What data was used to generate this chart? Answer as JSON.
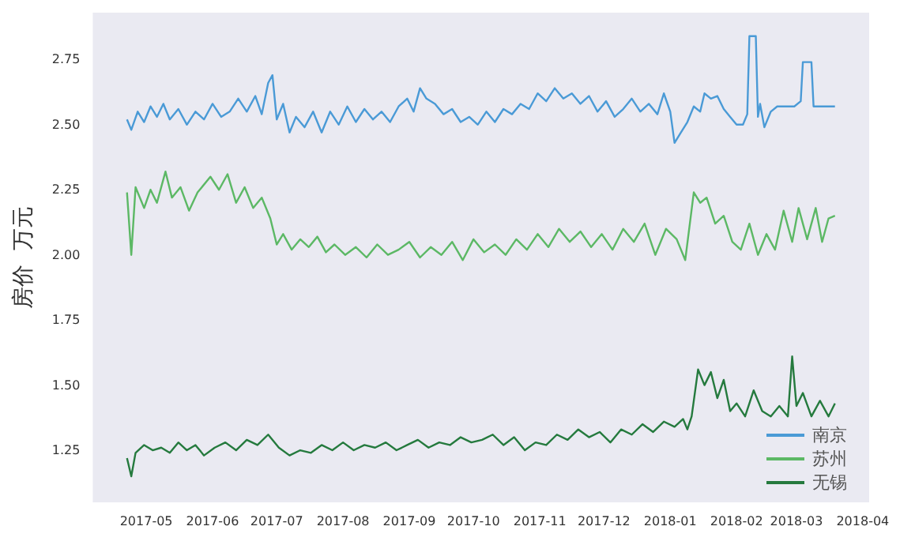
{
  "chart_data": {
    "type": "line",
    "ylabel": "房价  万元",
    "xlim": [
      "2017-04-06",
      "2018-04-04"
    ],
    "ylim": [
      1.05,
      2.93
    ],
    "xticks": [
      "2017-05",
      "2017-06",
      "2017-07",
      "2017-08",
      "2017-09",
      "2017-10",
      "2017-11",
      "2017-12",
      "2018-01",
      "2018-02",
      "2018-03",
      "2018-04"
    ],
    "yticks": [
      1.25,
      {
        "value": 1.5,
        "label": "1.50"
      },
      1.75,
      {
        "value": 2.0,
        "label": "2.00"
      },
      2.25,
      {
        "value": 2.5,
        "label": "2.50"
      },
      2.75
    ],
    "grid": false,
    "legend": "bottom right",
    "marker": "none",
    "line_style": "solid",
    "series": [
      {
        "name": "南京",
        "color": "#4a9ad6",
        "x": [
          "2017-04-22",
          "2017-04-24",
          "2017-04-27",
          "2017-04-30",
          "2017-05-03",
          "2017-05-06",
          "2017-05-09",
          "2017-05-12",
          "2017-05-16",
          "2017-05-20",
          "2017-05-24",
          "2017-05-28",
          "2017-06-01",
          "2017-06-05",
          "2017-06-09",
          "2017-06-13",
          "2017-06-17",
          "2017-06-21",
          "2017-06-24",
          "2017-06-27",
          "2017-06-29",
          "2017-07-01",
          "2017-07-04",
          "2017-07-07",
          "2017-07-10",
          "2017-07-14",
          "2017-07-18",
          "2017-07-22",
          "2017-07-26",
          "2017-07-30",
          "2017-08-03",
          "2017-08-07",
          "2017-08-11",
          "2017-08-15",
          "2017-08-19",
          "2017-08-23",
          "2017-08-27",
          "2017-08-31",
          "2017-09-03",
          "2017-09-06",
          "2017-09-09",
          "2017-09-13",
          "2017-09-17",
          "2017-09-21",
          "2017-09-25",
          "2017-09-29",
          "2017-10-03",
          "2017-10-07",
          "2017-10-11",
          "2017-10-15",
          "2017-10-19",
          "2017-10-23",
          "2017-10-27",
          "2017-10-31",
          "2017-11-04",
          "2017-11-08",
          "2017-11-12",
          "2017-11-16",
          "2017-11-20",
          "2017-11-24",
          "2017-11-28",
          "2017-12-02",
          "2017-12-06",
          "2017-12-10",
          "2017-12-14",
          "2017-12-18",
          "2017-12-22",
          "2017-12-26",
          "2017-12-29",
          "2018-01-01",
          "2018-01-03",
          "2018-01-06",
          "2018-01-09",
          "2018-01-12",
          "2018-01-15",
          "2018-01-17",
          "2018-01-20",
          "2018-01-23",
          "2018-01-26",
          "2018-01-29",
          "2018-02-01",
          "2018-02-04",
          "2018-02-06",
          "2018-02-07",
          "2018-02-10",
          "2018-02-11",
          "2018-02-12",
          "2018-02-14",
          "2018-02-17",
          "2018-02-20",
          "2018-02-24",
          "2018-02-28",
          "2018-03-03",
          "2018-03-04",
          "2018-03-08",
          "2018-03-09",
          "2018-03-19"
        ],
        "values": [
          2.52,
          2.48,
          2.55,
          2.51,
          2.57,
          2.53,
          2.58,
          2.52,
          2.56,
          2.5,
          2.55,
          2.52,
          2.58,
          2.53,
          2.55,
          2.6,
          2.55,
          2.61,
          2.54,
          2.66,
          2.69,
          2.52,
          2.58,
          2.47,
          2.53,
          2.49,
          2.55,
          2.47,
          2.55,
          2.5,
          2.57,
          2.51,
          2.56,
          2.52,
          2.55,
          2.51,
          2.57,
          2.6,
          2.55,
          2.64,
          2.6,
          2.58,
          2.54,
          2.56,
          2.51,
          2.53,
          2.5,
          2.55,
          2.51,
          2.56,
          2.54,
          2.58,
          2.56,
          2.62,
          2.59,
          2.64,
          2.6,
          2.62,
          2.58,
          2.61,
          2.55,
          2.59,
          2.53,
          2.56,
          2.6,
          2.55,
          2.58,
          2.54,
          2.62,
          2.55,
          2.43,
          2.47,
          2.51,
          2.57,
          2.55,
          2.62,
          2.6,
          2.61,
          2.56,
          2.53,
          2.5,
          2.5,
          2.54,
          2.84,
          2.84,
          2.53,
          2.58,
          2.49,
          2.55,
          2.57,
          2.57,
          2.57,
          2.59,
          2.74,
          2.74,
          2.57,
          2.57
        ]
      },
      {
        "name": "苏州",
        "color": "#5cb865",
        "x": [
          "2017-04-22",
          "2017-04-24",
          "2017-04-26",
          "2017-04-30",
          "2017-05-03",
          "2017-05-06",
          "2017-05-10",
          "2017-05-13",
          "2017-05-17",
          "2017-05-21",
          "2017-05-25",
          "2017-05-31",
          "2017-06-04",
          "2017-06-08",
          "2017-06-12",
          "2017-06-16",
          "2017-06-20",
          "2017-06-24",
          "2017-06-28",
          "2017-07-01",
          "2017-07-04",
          "2017-07-08",
          "2017-07-12",
          "2017-07-16",
          "2017-07-20",
          "2017-07-24",
          "2017-07-28",
          "2017-08-02",
          "2017-08-07",
          "2017-08-12",
          "2017-08-17",
          "2017-08-22",
          "2017-08-27",
          "2017-09-01",
          "2017-09-06",
          "2017-09-11",
          "2017-09-16",
          "2017-09-21",
          "2017-09-26",
          "2017-10-01",
          "2017-10-06",
          "2017-10-11",
          "2017-10-16",
          "2017-10-21",
          "2017-10-26",
          "2017-10-31",
          "2017-11-05",
          "2017-11-10",
          "2017-11-15",
          "2017-11-20",
          "2017-11-25",
          "2017-11-30",
          "2017-12-05",
          "2017-12-10",
          "2017-12-15",
          "2017-12-20",
          "2017-12-25",
          "2017-12-30",
          "2018-01-04",
          "2018-01-08",
          "2018-01-12",
          "2018-01-15",
          "2018-01-18",
          "2018-01-22",
          "2018-01-26",
          "2018-01-30",
          "2018-02-03",
          "2018-02-07",
          "2018-02-11",
          "2018-02-15",
          "2018-02-19",
          "2018-02-23",
          "2018-02-27",
          "2018-03-02",
          "2018-03-06",
          "2018-03-10",
          "2018-03-13",
          "2018-03-16",
          "2018-03-19"
        ],
        "values": [
          2.24,
          2.0,
          2.26,
          2.18,
          2.25,
          2.2,
          2.32,
          2.22,
          2.26,
          2.17,
          2.24,
          2.3,
          2.25,
          2.31,
          2.2,
          2.26,
          2.18,
          2.22,
          2.14,
          2.04,
          2.08,
          2.02,
          2.06,
          2.03,
          2.07,
          2.01,
          2.04,
          2.0,
          2.03,
          1.99,
          2.04,
          2.0,
          2.02,
          2.05,
          1.99,
          2.03,
          2.0,
          2.05,
          1.98,
          2.06,
          2.01,
          2.04,
          2.0,
          2.06,
          2.02,
          2.08,
          2.03,
          2.1,
          2.05,
          2.09,
          2.03,
          2.08,
          2.02,
          2.1,
          2.05,
          2.12,
          2.0,
          2.1,
          2.06,
          1.98,
          2.24,
          2.2,
          2.22,
          2.12,
          2.15,
          2.05,
          2.02,
          2.12,
          2.0,
          2.08,
          2.02,
          2.17,
          2.05,
          2.18,
          2.06,
          2.18,
          2.05,
          2.14,
          2.15
        ]
      },
      {
        "name": "无锡",
        "color": "#257a3e",
        "x": [
          "2017-04-22",
          "2017-04-24",
          "2017-04-26",
          "2017-04-30",
          "2017-05-04",
          "2017-05-08",
          "2017-05-12",
          "2017-05-16",
          "2017-05-20",
          "2017-05-24",
          "2017-05-28",
          "2017-06-02",
          "2017-06-07",
          "2017-06-12",
          "2017-06-17",
          "2017-06-22",
          "2017-06-27",
          "2017-07-02",
          "2017-07-07",
          "2017-07-12",
          "2017-07-17",
          "2017-07-22",
          "2017-07-27",
          "2017-08-01",
          "2017-08-06",
          "2017-08-11",
          "2017-08-16",
          "2017-08-21",
          "2017-08-26",
          "2017-08-31",
          "2017-09-05",
          "2017-09-10",
          "2017-09-15",
          "2017-09-20",
          "2017-09-25",
          "2017-09-30",
          "2017-10-05",
          "2017-10-10",
          "2017-10-15",
          "2017-10-20",
          "2017-10-25",
          "2017-10-30",
          "2017-11-04",
          "2017-11-09",
          "2017-11-14",
          "2017-11-19",
          "2017-11-24",
          "2017-11-29",
          "2017-12-04",
          "2017-12-09",
          "2017-12-14",
          "2017-12-19",
          "2017-12-24",
          "2017-12-29",
          "2018-01-03",
          "2018-01-07",
          "2018-01-09",
          "2018-01-11",
          "2018-01-14",
          "2018-01-17",
          "2018-01-20",
          "2018-01-23",
          "2018-01-26",
          "2018-01-29",
          "2018-02-01",
          "2018-02-05",
          "2018-02-09",
          "2018-02-13",
          "2018-02-17",
          "2018-02-21",
          "2018-02-25",
          "2018-02-27",
          "2018-03-01",
          "2018-03-04",
          "2018-03-08",
          "2018-03-12",
          "2018-03-16",
          "2018-03-19"
        ],
        "values": [
          1.22,
          1.15,
          1.24,
          1.27,
          1.25,
          1.26,
          1.24,
          1.28,
          1.25,
          1.27,
          1.23,
          1.26,
          1.28,
          1.25,
          1.29,
          1.27,
          1.31,
          1.26,
          1.23,
          1.25,
          1.24,
          1.27,
          1.25,
          1.28,
          1.25,
          1.27,
          1.26,
          1.28,
          1.25,
          1.27,
          1.29,
          1.26,
          1.28,
          1.27,
          1.3,
          1.28,
          1.29,
          1.31,
          1.27,
          1.3,
          1.25,
          1.28,
          1.27,
          1.31,
          1.29,
          1.33,
          1.3,
          1.32,
          1.28,
          1.33,
          1.31,
          1.35,
          1.32,
          1.36,
          1.34,
          1.37,
          1.33,
          1.38,
          1.56,
          1.5,
          1.55,
          1.45,
          1.52,
          1.4,
          1.43,
          1.38,
          1.48,
          1.4,
          1.38,
          1.42,
          1.38,
          1.61,
          1.42,
          1.47,
          1.38,
          1.44,
          1.38,
          1.43
        ]
      }
    ]
  }
}
